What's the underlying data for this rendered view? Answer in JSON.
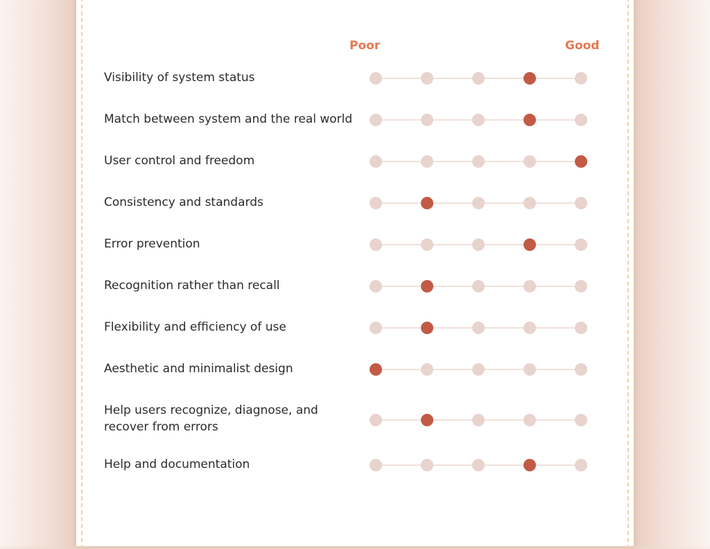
{
  "scale": {
    "low_label": "Poor",
    "high_label": "Good",
    "points": 5
  },
  "colors": {
    "accent": "#e8774f",
    "selected_dot": "#c25a46",
    "unselected_dot": "#e8d3cd",
    "dashed_border": "#f4cfaa"
  },
  "heuristics": [
    {
      "label": "Visibility of system status",
      "rating": 4
    },
    {
      "label": "Match between system and the real world",
      "rating": 4
    },
    {
      "label": "User control and freedom",
      "rating": 5
    },
    {
      "label": "Consistency and standards",
      "rating": 2
    },
    {
      "label": "Error prevention",
      "rating": 4
    },
    {
      "label": "Recognition rather than recall",
      "rating": 2
    },
    {
      "label": "Flexibility and efficiency of use",
      "rating": 2
    },
    {
      "label": "Aesthetic and minimalist design",
      "rating": 1
    },
    {
      "label": "Help users recognize, diagnose, and recover from errors",
      "rating": 2
    },
    {
      "label": "Help and documentation",
      "rating": 4
    }
  ]
}
